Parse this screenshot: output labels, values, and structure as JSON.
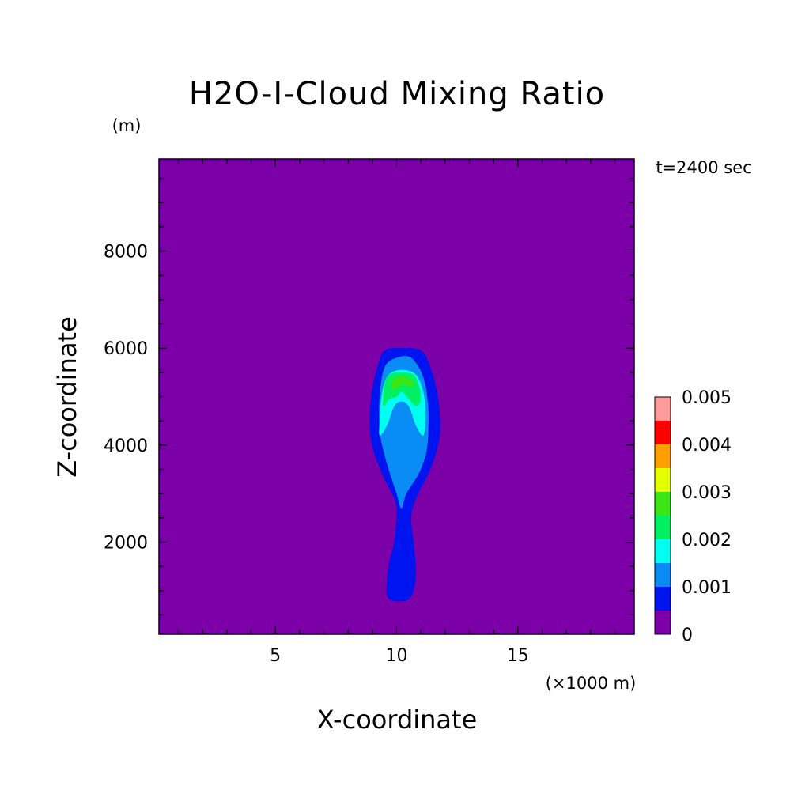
{
  "chart_data": {
    "type": "contour",
    "title": "H2O-I-Cloud Mixing Ratio",
    "annotation": "t=2400 sec",
    "xlabel": "X-coordinate",
    "xunit": "(×1000 m)",
    "ylabel": "Z-coordinate",
    "yunit": "(m)",
    "xlim": [
      0.2,
      19.8
    ],
    "ylim": [
      100,
      9900
    ],
    "xticks": [
      5,
      10,
      15
    ],
    "xtick_labels": [
      "5",
      "10",
      "15"
    ],
    "yticks": [
      2000,
      4000,
      6000,
      8000
    ],
    "ytick_labels": [
      "2000",
      "4000",
      "6000",
      "8000"
    ],
    "grid": false,
    "levels": [
      0,
      0.0005,
      0.001,
      0.0015,
      0.002,
      0.0025,
      0.003,
      0.0035,
      0.004,
      0.0045,
      0.005
    ],
    "colorbar": {
      "colors": [
        "#7b00a7",
        "#0014f0",
        "#0a8cf5",
        "#00fff0",
        "#00f064",
        "#3ce614",
        "#e6ff00",
        "#ffa000",
        "#ff0000",
        "#ff9b9b"
      ],
      "tick_values": [
        0,
        0.001,
        0.002,
        0.003,
        0.004,
        0.005
      ],
      "tick_labels": [
        "0",
        "0.001",
        "0.002",
        "0.003",
        "0.004",
        "0.005"
      ]
    },
    "regions": [
      {
        "level_min": 0.0005,
        "points": [
          [
            9.6,
            900
          ],
          [
            9.8,
            800
          ],
          [
            10.2,
            780
          ],
          [
            10.5,
            820
          ],
          [
            10.7,
            1000
          ],
          [
            10.8,
            1400
          ],
          [
            10.7,
            2000
          ],
          [
            10.6,
            2500
          ],
          [
            10.8,
            2900
          ],
          [
            11.3,
            3400
          ],
          [
            11.6,
            3800
          ],
          [
            11.8,
            4300
          ],
          [
            11.7,
            5000
          ],
          [
            11.4,
            5600
          ],
          [
            11.0,
            5950
          ],
          [
            10.2,
            6000
          ],
          [
            9.5,
            5950
          ],
          [
            9.2,
            5600
          ],
          [
            8.95,
            5000
          ],
          [
            8.9,
            4300
          ],
          [
            9.1,
            3800
          ],
          [
            9.5,
            3300
          ],
          [
            9.9,
            2900
          ],
          [
            10.0,
            2600
          ],
          [
            9.9,
            2000
          ],
          [
            9.7,
            1600
          ],
          [
            9.6,
            1200
          ]
        ]
      },
      {
        "level_min": 0.001,
        "points": [
          [
            10.2,
            2700
          ],
          [
            10.4,
            3000
          ],
          [
            10.9,
            3400
          ],
          [
            11.2,
            3800
          ],
          [
            11.3,
            4200
          ],
          [
            11.3,
            4800
          ],
          [
            11.1,
            5400
          ],
          [
            10.6,
            5800
          ],
          [
            10.0,
            5800
          ],
          [
            9.5,
            5600
          ],
          [
            9.3,
            5000
          ],
          [
            9.3,
            4300
          ],
          [
            9.5,
            3800
          ],
          [
            9.8,
            3300
          ],
          [
            10.0,
            3000
          ]
        ]
      },
      {
        "level_min": 0.0015,
        "points": [
          [
            9.3,
            4200
          ],
          [
            9.6,
            4400
          ],
          [
            9.9,
            4800
          ],
          [
            10.2,
            4900
          ],
          [
            10.5,
            4800
          ],
          [
            10.8,
            4400
          ],
          [
            11.1,
            4200
          ],
          [
            11.2,
            4600
          ],
          [
            11.1,
            5100
          ],
          [
            10.8,
            5450
          ],
          [
            10.3,
            5550
          ],
          [
            9.8,
            5500
          ],
          [
            9.5,
            5300
          ],
          [
            9.35,
            4900
          ],
          [
            9.3,
            4500
          ]
        ]
      },
      {
        "level_min": 0.002,
        "points": [
          [
            9.45,
            4800
          ],
          [
            9.7,
            4950
          ],
          [
            10.0,
            5000
          ],
          [
            10.2,
            5100
          ],
          [
            10.5,
            4950
          ],
          [
            10.8,
            4800
          ],
          [
            11.0,
            4950
          ],
          [
            10.9,
            5250
          ],
          [
            10.7,
            5450
          ],
          [
            10.2,
            5500
          ],
          [
            9.7,
            5450
          ],
          [
            9.5,
            5250
          ]
        ]
      },
      {
        "level_min": 0.0025,
        "points": [
          [
            9.8,
            5150
          ],
          [
            10.1,
            5200
          ],
          [
            10.3,
            5250
          ],
          [
            10.6,
            5200
          ],
          [
            10.7,
            5300
          ],
          [
            10.4,
            5400
          ],
          [
            10.1,
            5420
          ],
          [
            9.85,
            5350
          ]
        ]
      }
    ]
  }
}
